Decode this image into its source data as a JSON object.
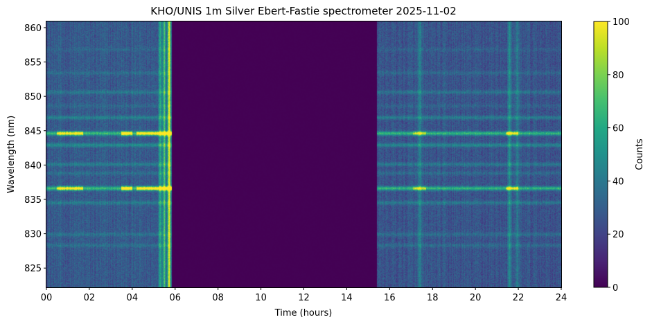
{
  "chart_data": {
    "type": "heatmap",
    "title": "KHO/UNIS 1m Silver Ebert-Fastie spectrometer 2025-11-02",
    "xlabel": "Time (hours)",
    "ylabel": "Wavelength (nm)",
    "colorbar_label": "Counts",
    "colormap": "viridis",
    "xlim": [
      0,
      24
    ],
    "ylim": [
      822.2,
      860.9
    ],
    "clim": [
      0,
      100
    ],
    "x_ticks": [
      0,
      2,
      4,
      6,
      8,
      10,
      12,
      14,
      16,
      18,
      20,
      22,
      24
    ],
    "x_tick_labels": [
      "00",
      "02",
      "04",
      "06",
      "08",
      "10",
      "12",
      "14",
      "16",
      "18",
      "20",
      "22",
      "24"
    ],
    "y_ticks": [
      825,
      830,
      835,
      840,
      845,
      850,
      855,
      860
    ],
    "y_tick_labels": [
      "825",
      "830",
      "835",
      "840",
      "845",
      "850",
      "855",
      "860"
    ],
    "colorbar_ticks": [
      0,
      20,
      40,
      60,
      80,
      100
    ],
    "colorbar_tick_labels": [
      "0",
      "20",
      "40",
      "60",
      "80",
      "100"
    ],
    "no_data_interval_hours": [
      5.85,
      15.4
    ],
    "background_counts_left": 28,
    "background_counts_right": 26,
    "emission_lines": [
      {
        "wavelength_nm": 844.6,
        "intensity": 40,
        "strong": true
      },
      {
        "wavelength_nm": 836.6,
        "intensity": 40,
        "strong": true
      },
      {
        "wavelength_nm": 842.9,
        "intensity": 20
      },
      {
        "wavelength_nm": 846.9,
        "intensity": 16
      },
      {
        "wavelength_nm": 840.1,
        "intensity": 14
      },
      {
        "wavelength_nm": 834.5,
        "intensity": 14
      },
      {
        "wavelength_nm": 850.6,
        "intensity": 12
      },
      {
        "wavelength_nm": 853.4,
        "intensity": 8
      },
      {
        "wavelength_nm": 838.8,
        "intensity": 9
      },
      {
        "wavelength_nm": 829.9,
        "intensity": 10
      },
      {
        "wavelength_nm": 828.3,
        "intensity": 9
      },
      {
        "wavelength_nm": 848.6,
        "intensity": 6
      },
      {
        "wavelength_nm": 856.8,
        "intensity": 5
      }
    ],
    "bright_time_columns_hours": [
      {
        "hour": 5.3,
        "intensity": 35
      },
      {
        "hour": 5.5,
        "intensity": 45
      },
      {
        "hour": 5.72,
        "intensity": 75
      },
      {
        "hour": 17.4,
        "intensity": 20
      },
      {
        "hour": 21.6,
        "intensity": 22
      },
      {
        "hour": 21.95,
        "intensity": 18
      }
    ],
    "line_bursts": [
      {
        "start_hour": 0.5,
        "end_hour": 1.7,
        "amount": 55
      },
      {
        "start_hour": 3.5,
        "end_hour": 4.0,
        "amount": 75
      },
      {
        "start_hour": 4.2,
        "end_hour": 5.9,
        "amount": 60
      },
      {
        "start_hour": 17.1,
        "end_hour": 17.7,
        "amount": 35
      },
      {
        "start_hour": 21.4,
        "end_hour": 22.0,
        "amount": 45
      }
    ]
  }
}
